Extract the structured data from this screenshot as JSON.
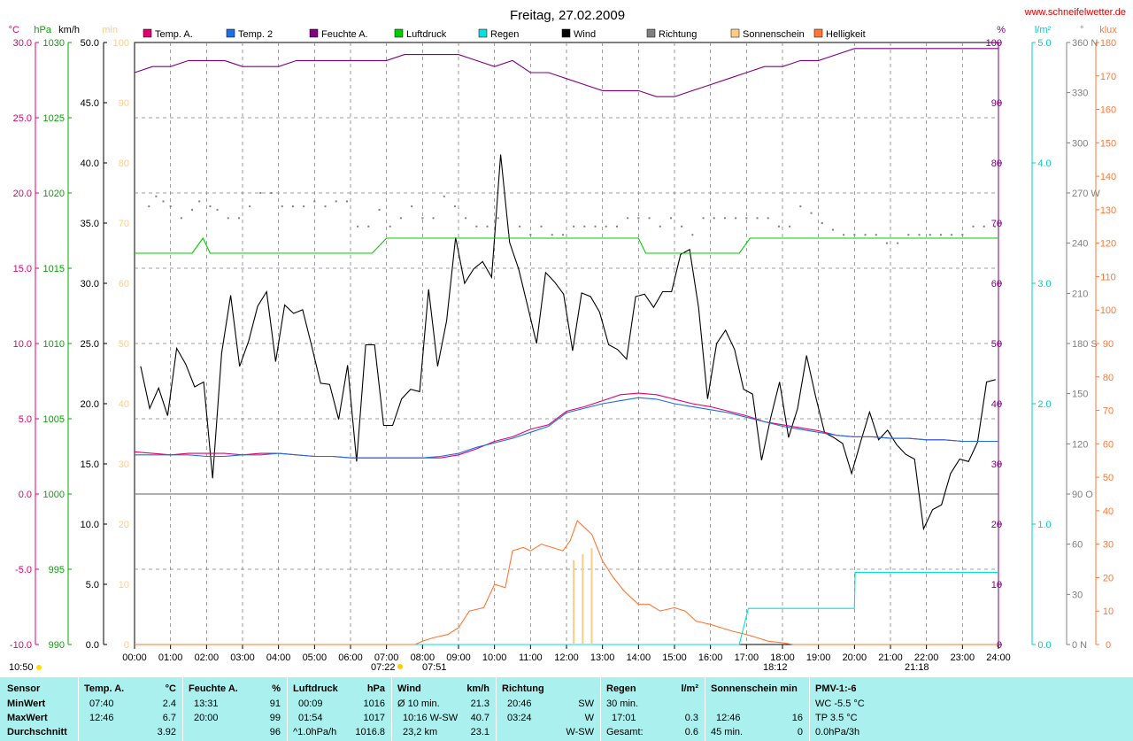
{
  "title": "Freitag, 27.02.2009",
  "website": "www.schneifelwetter.de",
  "legend": [
    {
      "label": "Temp. A.",
      "color": "#e0006e"
    },
    {
      "label": "Temp. 2",
      "color": "#1e6fe0"
    },
    {
      "label": "Feuchte A.",
      "color": "#800080"
    },
    {
      "label": "Luftdruck",
      "color": "#00cc00"
    },
    {
      "label": "Regen",
      "color": "#00e0e0"
    },
    {
      "label": "Wind",
      "color": "#000000"
    },
    {
      "label": "Richtung",
      "color": "#808080"
    },
    {
      "label": "Sonnenschein",
      "color": "#ffcc88"
    },
    {
      "label": "Helligkeit",
      "color": "#ff7733"
    }
  ],
  "axes": {
    "temp": {
      "unit": "°C",
      "color": "#e0006e",
      "ticks": [
        "30.0",
        "25.0",
        "20.0",
        "15.0",
        "10.0",
        "5.0",
        "0.0",
        "-5.0",
        "-10.0"
      ]
    },
    "pressure": {
      "unit": "hPa",
      "color": "#00aa00",
      "ticks": [
        "1030",
        "1025",
        "1020",
        "1015",
        "1010",
        "1005",
        "1000",
        "995",
        "990"
      ]
    },
    "wind": {
      "unit": "km/h",
      "color": "#000000",
      "ticks": [
        "50.0",
        "45.0",
        "40.0",
        "35.0",
        "30.0",
        "25.0",
        "20.0",
        "15.0",
        "10.0",
        "5.0",
        "0.0"
      ]
    },
    "sun": {
      "unit": "min",
      "color": "#ffcc88",
      "ticks": [
        "100",
        "90",
        "80",
        "70",
        "60",
        "50",
        "40",
        "30",
        "20",
        "10",
        "0"
      ]
    },
    "humidity": {
      "unit": "%",
      "color": "#800080",
      "ticks": [
        "100",
        "90",
        "80",
        "70",
        "60",
        "50",
        "40",
        "30",
        "20",
        "10",
        "0"
      ]
    },
    "rain": {
      "unit": "l/m²",
      "color": "#00cccc",
      "ticks": [
        "5.0",
        "4.0",
        "3.0",
        "2.0",
        "1.0",
        "0.0"
      ]
    },
    "direction": {
      "unit": "°",
      "color": "#808080",
      "ticks": [
        "360 N",
        "330",
        "300",
        "270 W",
        "240",
        "210",
        "180 S",
        "150",
        "120",
        "90 O",
        "60",
        "30",
        "0 N"
      ]
    },
    "light": {
      "unit": "klux",
      "color": "#ff7733",
      "ticks": [
        "180",
        "170",
        "160",
        "150",
        "140",
        "130",
        "120",
        "110",
        "100",
        "90",
        "80",
        "70",
        "60",
        "50",
        "40",
        "30",
        "20",
        "10",
        "0"
      ]
    },
    "x_ticks": [
      "00:00",
      "01:00",
      "02:00",
      "03:00",
      "04:00",
      "05:00",
      "06:00",
      "07:00",
      "08:00",
      "09:00",
      "10:00",
      "11:00",
      "12:00",
      "13:00",
      "14:00",
      "15:00",
      "16:00",
      "17:00",
      "18:00",
      "19:00",
      "20:00",
      "21:00",
      "22:00",
      "23:00",
      "24:00"
    ]
  },
  "annotations": {
    "time": "10:50",
    "sunrise": "07:22",
    "sunset": "18:12",
    "moonrise": "07:51",
    "moonset": "21:18"
  },
  "chart_data": {
    "type": "line",
    "x_unit": "hours",
    "x_range": [
      0,
      24
    ],
    "series": [
      {
        "name": "Wind",
        "axis": "wind",
        "color": "#000000",
        "x": [
          0.17,
          0.42,
          0.67,
          0.92,
          1.17,
          1.42,
          1.67,
          1.92,
          2.17,
          2.42,
          2.67,
          2.92,
          3.17,
          3.42,
          3.67,
          3.92,
          4.17,
          4.42,
          4.67,
          4.92,
          5.17,
          5.42,
          5.67,
          5.92,
          6.17,
          6.42,
          6.67,
          6.92,
          7.17,
          7.42,
          7.67,
          7.92,
          8.17,
          8.42,
          8.67,
          8.92,
          9.17,
          9.42,
          9.67,
          9.92,
          10.17,
          10.42,
          10.67,
          10.92,
          11.17,
          11.42,
          11.67,
          11.92,
          12.17,
          12.42,
          12.67,
          12.92,
          13.17,
          13.42,
          13.67,
          13.92,
          14.17,
          14.42,
          14.67,
          14.92,
          15.17,
          15.42,
          15.67,
          15.92,
          16.17,
          16.42,
          16.67,
          16.92,
          17.17,
          17.42,
          17.67,
          17.92,
          18.17,
          18.42,
          18.67,
          18.92,
          19.17,
          19.42,
          19.67,
          19.92,
          20.17,
          20.42,
          20.67,
          20.92,
          21.17,
          21.42,
          21.67,
          21.92,
          22.17,
          22.42,
          22.67,
          22.92,
          23.17,
          23.42,
          23.67,
          23.92
        ],
        "y": [
          23.1,
          19.6,
          21.3,
          19.0,
          24.6,
          23.3,
          21.4,
          21.8,
          13.8,
          24.2,
          29.0,
          23.1,
          25.2,
          28.1,
          29.3,
          23.5,
          28.2,
          27.5,
          27.8,
          24.8,
          21.7,
          21.6,
          18.7,
          23.2,
          15.2,
          24.9,
          24.9,
          18.2,
          18.2,
          20.4,
          21.2,
          21.0,
          29.5,
          23.1,
          26.9,
          33.8,
          30.0,
          31.2,
          31.8,
          30.5,
          40.7,
          33.4,
          31.2,
          28.1,
          25.0,
          30.9,
          30.1,
          29.1,
          24.4,
          29.2,
          28.9,
          27.6,
          24.9,
          24.5,
          23.7,
          28.9,
          29.1,
          28.0,
          29.3,
          29.3,
          32.4,
          32.8,
          28.0,
          20.4,
          25.0,
          26.1,
          24.5,
          21.2,
          20.8,
          15.3,
          18.8,
          21.8,
          17.2,
          19.6,
          24.0,
          20.6,
          17.6,
          17.2,
          16.7,
          14.2,
          16.8,
          19.3,
          17.0,
          17.8,
          16.6,
          15.8,
          15.4,
          9.6,
          11.2,
          11.6,
          14.2,
          15.4,
          15.2,
          16.8,
          21.8,
          22.0
        ]
      },
      {
        "name": "Temp. A.",
        "axis": "temp",
        "color": "#e0006e",
        "x": [
          0,
          0.5,
          1,
          1.5,
          2,
          2.5,
          3,
          3.5,
          4,
          4.5,
          5,
          5.5,
          6,
          6.5,
          7,
          7.5,
          8,
          8.5,
          9,
          9.5,
          10,
          10.5,
          11,
          11.5,
          12,
          12.5,
          13,
          13.5,
          14,
          14.5,
          15,
          15.5,
          16,
          16.5,
          17,
          17.5,
          18,
          18.5,
          19,
          19.5,
          20,
          20.5,
          21,
          21.5,
          22,
          22.5,
          23,
          23.5,
          24
        ],
        "y": [
          2.8,
          2.7,
          2.6,
          2.7,
          2.7,
          2.7,
          2.6,
          2.7,
          2.7,
          2.6,
          2.5,
          2.5,
          2.4,
          2.4,
          2.4,
          2.4,
          2.4,
          2.4,
          2.6,
          3.0,
          3.5,
          3.8,
          4.3,
          4.6,
          5.5,
          5.8,
          6.2,
          6.6,
          6.7,
          6.6,
          6.3,
          6.0,
          5.8,
          5.5,
          5.2,
          4.8,
          4.6,
          4.4,
          4.2,
          3.9,
          3.8,
          3.8,
          3.7,
          3.7,
          3.6,
          3.6,
          3.5,
          3.5,
          3.5
        ]
      },
      {
        "name": "Temp. 2",
        "axis": "temp",
        "color": "#1e6fe0",
        "x": [
          0,
          0.5,
          1,
          1.5,
          2,
          2.5,
          3,
          3.5,
          4,
          4.5,
          5,
          5.5,
          6,
          6.5,
          7,
          7.5,
          8,
          8.5,
          9,
          9.5,
          10,
          10.5,
          11,
          11.5,
          12,
          12.5,
          13,
          13.5,
          14,
          14.5,
          15,
          15.5,
          16,
          16.5,
          17,
          17.5,
          18,
          18.5,
          19,
          19.5,
          20,
          20.5,
          21,
          21.5,
          22,
          22.5,
          23,
          23.5,
          24
        ],
        "y": [
          2.6,
          2.6,
          2.6,
          2.6,
          2.5,
          2.5,
          2.6,
          2.6,
          2.7,
          2.6,
          2.5,
          2.5,
          2.4,
          2.4,
          2.4,
          2.4,
          2.4,
          2.5,
          2.7,
          3.1,
          3.4,
          3.7,
          4.1,
          4.5,
          5.4,
          5.7,
          6.0,
          6.2,
          6.4,
          6.3,
          6.0,
          5.8,
          5.6,
          5.4,
          5.1,
          4.8,
          4.5,
          4.3,
          4.1,
          3.9,
          3.8,
          3.8,
          3.7,
          3.7,
          3.6,
          3.6,
          3.5,
          3.5,
          3.5
        ]
      },
      {
        "name": "Feuchte A.",
        "axis": "humidity",
        "color": "#800080",
        "x": [
          0,
          0.5,
          1,
          1.5,
          2,
          2.5,
          3,
          3.5,
          4,
          4.5,
          5,
          5.5,
          6,
          6.5,
          7,
          7.5,
          8,
          8.5,
          9,
          9.5,
          10,
          10.5,
          11,
          11.5,
          12,
          12.5,
          13,
          13.5,
          14,
          14.5,
          15,
          15.5,
          16,
          16.5,
          17,
          17.5,
          18,
          18.5,
          19,
          19.5,
          20,
          20.5,
          21,
          21.5,
          22,
          22.5,
          23,
          23.5,
          24
        ],
        "y": [
          95,
          96,
          96,
          97,
          97,
          97,
          96,
          96,
          96,
          97,
          97,
          97,
          97,
          97,
          97,
          98,
          98,
          98,
          98,
          97,
          96,
          97,
          95,
          95,
          94,
          93,
          92,
          92,
          92,
          91,
          91,
          92,
          93,
          94,
          95,
          96,
          96,
          97,
          97,
          98,
          99,
          99,
          99,
          99,
          99,
          99,
          99,
          99,
          99
        ]
      },
      {
        "name": "Luftdruck",
        "axis": "pressure",
        "color": "#00cc00",
        "x": [
          0,
          1.6,
          1.9,
          2.1,
          6.6,
          7.0,
          14.0,
          14.2,
          16.8,
          17.1,
          24
        ],
        "y": [
          1016,
          1016,
          1017,
          1016,
          1016,
          1017,
          1017,
          1016,
          1016,
          1017,
          1017
        ]
      },
      {
        "name": "Regen",
        "axis": "rain",
        "color": "#00e0e0",
        "x": [
          0,
          16.8,
          17.05,
          17.05,
          20.0,
          20.0,
          20.02,
          24
        ],
        "y": [
          0,
          0,
          0.3,
          0.3,
          0.3,
          0.3,
          0.6,
          0.6
        ]
      },
      {
        "name": "Helligkeit",
        "axis": "light",
        "color": "#ff7733",
        "x": [
          0,
          7.8,
          8.0,
          8.3,
          8.7,
          9.0,
          9.3,
          9.7,
          10.0,
          10.3,
          10.5,
          10.8,
          11.0,
          11.3,
          11.6,
          11.9,
          12.1,
          12.3,
          12.5,
          12.7,
          13.0,
          13.3,
          13.6,
          14.0,
          14.3,
          14.6,
          15.0,
          15.3,
          15.6,
          16.0,
          16.3,
          16.6,
          17.0,
          17.3,
          17.6,
          18.0,
          18.3,
          24
        ],
        "y": [
          0,
          0,
          1,
          2,
          3,
          5,
          10,
          11,
          18,
          17,
          28,
          29,
          28,
          30,
          29,
          28,
          31,
          37,
          35,
          33,
          25,
          20,
          16,
          12,
          12,
          10,
          11,
          10,
          7,
          6,
          5,
          4,
          3,
          2,
          1,
          0.5,
          0,
          0
        ]
      },
      {
        "name": "Richtung",
        "axis": "direction",
        "color": "#808080",
        "style": "dots",
        "x": [
          0.4,
          0.6,
          0.8,
          1.0,
          1.3,
          1.6,
          1.8,
          2.1,
          2.3,
          2.6,
          2.9,
          3.2,
          3.5,
          3.8,
          4.1,
          4.4,
          4.7,
          5.0,
          5.3,
          5.6,
          5.9,
          6.2,
          6.5,
          6.8,
          7.1,
          7.4,
          7.7,
          8.0,
          8.3,
          8.6,
          8.9,
          9.2,
          9.5,
          9.8,
          10.1,
          10.4,
          10.7,
          11.0,
          11.3,
          11.6,
          11.9,
          12.2,
          12.5,
          12.8,
          13.1,
          13.4,
          13.7,
          14.0,
          14.3,
          14.6,
          14.9,
          15.2,
          15.5,
          15.8,
          16.1,
          16.4,
          16.7,
          17.0,
          17.3,
          17.6,
          17.9,
          18.2,
          18.5,
          18.8,
          19.1,
          19.4,
          19.7,
          20.0,
          20.3,
          20.6,
          20.9,
          21.2,
          21.5,
          21.8,
          22.1,
          22.4,
          22.7,
          23.0,
          23.3,
          23.6,
          23.9
        ],
        "y": [
          262,
          268,
          265,
          262,
          255,
          260,
          265,
          262,
          260,
          255,
          255,
          262,
          270,
          270,
          262,
          262,
          262,
          265,
          262,
          265,
          265,
          250,
          250,
          260,
          250,
          255,
          262,
          255,
          255,
          268,
          262,
          255,
          250,
          250,
          255,
          245,
          250,
          245,
          250,
          245,
          245,
          250,
          250,
          250,
          250,
          250,
          255,
          255,
          255,
          250,
          255,
          250,
          245,
          255,
          255,
          255,
          255,
          255,
          255,
          255,
          250,
          250,
          262,
          258,
          252,
          248,
          245,
          245,
          245,
          245,
          240,
          240,
          245,
          245,
          245,
          245,
          245,
          245,
          250,
          250,
          250
        ]
      },
      {
        "name": "Sonnenschein",
        "axis": "sun",
        "color": "#ffcc88",
        "style": "bars",
        "x": [
          12.2,
          12.45,
          12.7
        ],
        "y": [
          14,
          15,
          16
        ]
      }
    ],
    "y_ranges": {
      "temp": [
        -10,
        30
      ],
      "pressure": [
        990,
        1030
      ],
      "wind": [
        0,
        50
      ],
      "humidity": [
        0,
        100
      ],
      "rain": [
        0,
        5
      ],
      "direction": [
        0,
        360
      ],
      "light": [
        0,
        180
      ],
      "sun": [
        0,
        100
      ]
    },
    "grid": true
  },
  "summary": {
    "headers": [
      "Sensor",
      "Temp. A.",
      "°C",
      "Feuchte A.",
      "%",
      "Luftdruck",
      "hPa",
      "Wind",
      "km/h",
      "Richtung",
      "Regen",
      "l/m²",
      "Sonnenschein min",
      "PMV-1:-6"
    ],
    "rows": [
      {
        "label": "MinWert",
        "temp_time": "07:40",
        "temp_val": "2.4",
        "hum_time": "13:31",
        "hum_val": "91",
        "press_time": "00:09",
        "press_val": "1016",
        "wind_label": "Ø 10 min.",
        "wind_val": "21.3",
        "dir_time": "20:46",
        "dir_val": "SW",
        "rain_label": "30 min.",
        "rain_val": "",
        "sun_time": "",
        "sun_val": "",
        "pmv": "WC -5.5 °C"
      },
      {
        "label": "MaxWert",
        "temp_time": "12:46",
        "temp_val": "6.7",
        "hum_time": "20:00",
        "hum_val": "99",
        "press_time": "01:54",
        "press_val": "1017",
        "wind_label": "10:16   W-SW",
        "wind_val": "40.7",
        "dir_time": "03:24",
        "dir_val": "W",
        "rain_label": "17:01",
        "rain_val": "0.3",
        "sun_time": "12:46",
        "sun_val": "16",
        "pmv": "TP 3.5 °C"
      },
      {
        "label": "Durchschnitt",
        "temp_time": "",
        "temp_val": "3.92",
        "hum_time": "",
        "hum_val": "96",
        "press_time": "^1.0hPa/h",
        "press_val": "1016.8",
        "wind_label": "23,2 km",
        "wind_val": "23.1",
        "dir_time": "",
        "dir_val": "W-SW",
        "rain_label": "Gesamt:",
        "rain_val": "0.6",
        "sun_time": "45 min.",
        "sun_val": "0",
        "pmv": "0.0hPa/3h"
      }
    ]
  }
}
